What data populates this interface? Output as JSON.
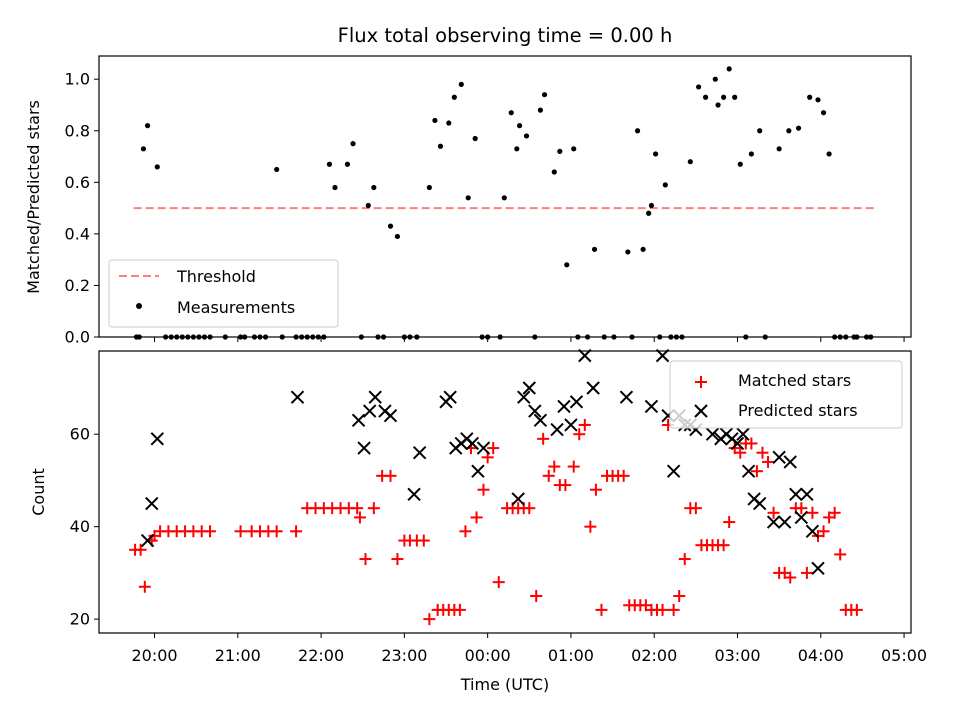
{
  "chart_data": [
    {
      "type": "scatter",
      "title": "Flux total observing time = 0.00 h",
      "xlabel": "",
      "ylabel": "Matched/Predicted stars",
      "ylim": [
        0,
        1.09
      ],
      "xlim": [
        "19:20",
        "05:05"
      ],
      "yticks": [
        "0.0",
        "0.2",
        "0.4",
        "0.6",
        "0.8",
        "1.0"
      ],
      "grid": false,
      "legend_position": "lower-left",
      "legend": [
        "Threshold",
        "Measurements"
      ],
      "threshold": {
        "name": "Threshold",
        "y": 0.5,
        "x_start": "19:45",
        "x_end": "04:40",
        "color": "#ff7f7f",
        "style": "dashed"
      },
      "series": [
        {
          "name": "Measurements",
          "marker": "dot",
          "color": "#000000",
          "x": [
            "19:47",
            "19:49",
            "19:52",
            "19:55",
            "20:02",
            "20:08",
            "20:12",
            "20:16",
            "20:20",
            "20:24",
            "20:28",
            "20:32",
            "20:36",
            "20:40",
            "20:51",
            "21:02",
            "21:05",
            "21:12",
            "21:16",
            "21:20",
            "21:28",
            "21:32",
            "21:42",
            "21:46",
            "21:50",
            "21:54",
            "21:58",
            "22:02",
            "22:06",
            "22:10",
            "22:19",
            "22:23",
            "22:29",
            "22:34",
            "22:38",
            "22:41",
            "22:45",
            "22:50",
            "22:55",
            "23:00",
            "23:04",
            "23:09",
            "23:18",
            "23:22",
            "23:26",
            "23:32",
            "23:36",
            "23:41",
            "23:46",
            "23:51",
            "23:56",
            "24:00",
            "24:09",
            "24:12",
            "24:17",
            "24:21",
            "24:23",
            "24:28",
            "24:34",
            "24:38",
            "24:41",
            "24:48",
            "24:52",
            "24:57",
            "25:02",
            "25:05",
            "25:12",
            "25:17",
            "25:24",
            "25:31",
            "25:41",
            "25:44",
            "25:48",
            "25:52",
            "25:56",
            "25:58",
            "26:01",
            "26:04",
            "26:08",
            "26:12",
            "26:16",
            "26:20",
            "26:26",
            "26:32",
            "26:37",
            "26:44",
            "26:46",
            "26:50",
            "26:54",
            "26:58",
            "27:02",
            "27:06",
            "27:10",
            "27:16",
            "27:20",
            "27:30",
            "27:37",
            "27:44",
            "27:52",
            "27:58",
            "28:02",
            "28:06",
            "28:10",
            "28:14",
            "28:18",
            "28:24",
            "28:26",
            "28:33",
            "28:36"
          ],
          "y": [
            0.0,
            0.0,
            0.73,
            0.82,
            0.66,
            0.0,
            0.0,
            0.0,
            0.0,
            0.0,
            0.0,
            0.0,
            0.0,
            0.0,
            0.0,
            0.0,
            0.0,
            0.0,
            0.0,
            0.0,
            0.65,
            0.0,
            0.0,
            0.0,
            0.0,
            0.0,
            0.0,
            0.0,
            0.67,
            0.58,
            0.67,
            0.75,
            0.0,
            0.51,
            0.58,
            0.0,
            0.0,
            0.43,
            0.39,
            0.0,
            0.0,
            0.0,
            0.58,
            0.84,
            0.74,
            0.83,
            0.93,
            0.98,
            0.54,
            0.77,
            0.0,
            0.0,
            0.0,
            0.54,
            0.87,
            0.73,
            0.82,
            0.78,
            0.0,
            0.88,
            0.94,
            0.64,
            0.72,
            0.28,
            0.73,
            0.0,
            0.0,
            0.34,
            0.0,
            0.0,
            0.33,
            0.0,
            0.8,
            0.34,
            0.48,
            0.51,
            0.71,
            0.0,
            0.59,
            0.0,
            0.0,
            0.0,
            0.68,
            0.97,
            0.93,
            1.0,
            0.9,
            0.93,
            1.04,
            0.93,
            0.67,
            0.0,
            0.71,
            0.8,
            0.0,
            0.73,
            0.8,
            0.81,
            0.93,
            0.92,
            0.87,
            0.71,
            0.0,
            0.0,
            0.0,
            0.0,
            0.0,
            0.0,
            0.0
          ]
        }
      ]
    },
    {
      "type": "scatter",
      "title": "",
      "xlabel": "Time (UTC)",
      "ylabel": "Count",
      "ylim": [
        17,
        78
      ],
      "xlim": [
        "19:20",
        "05:05"
      ],
      "yticks": [
        "20",
        "40",
        "60"
      ],
      "xticks": [
        "20:00",
        "21:00",
        "22:00",
        "23:00",
        "00:00",
        "01:00",
        "02:00",
        "03:00",
        "04:00",
        "05:00"
      ],
      "grid": false,
      "legend_position": "upper-right",
      "legend": [
        "Matched stars",
        "Predicted stars"
      ],
      "series": [
        {
          "name": "Matched stars",
          "marker": "plus",
          "color": "#ff0000",
          "points": [
            [
              "19:46",
              35
            ],
            [
              "19:50",
              35
            ],
            [
              "19:53",
              27
            ],
            [
              "19:58",
              37
            ],
            [
              "20:00",
              38
            ],
            [
              "20:04",
              39
            ],
            [
              "20:10",
              39
            ],
            [
              "20:16",
              39
            ],
            [
              "20:22",
              39
            ],
            [
              "20:28",
              39
            ],
            [
              "20:34",
              39
            ],
            [
              "20:40",
              39
            ],
            [
              "21:02",
              39
            ],
            [
              "21:10",
              39
            ],
            [
              "21:16",
              39
            ],
            [
              "21:22",
              39
            ],
            [
              "21:28",
              39
            ],
            [
              "21:42",
              39
            ],
            [
              "21:50",
              44
            ],
            [
              "21:56",
              44
            ],
            [
              "22:02",
              44
            ],
            [
              "22:08",
              44
            ],
            [
              "22:14",
              44
            ],
            [
              "22:20",
              44
            ],
            [
              "22:26",
              44
            ],
            [
              "22:28",
              42
            ],
            [
              "22:32",
              33
            ],
            [
              "22:38",
              44
            ],
            [
              "22:44",
              51
            ],
            [
              "22:50",
              51
            ],
            [
              "22:55",
              33
            ],
            [
              "23:00",
              37
            ],
            [
              "23:04",
              37
            ],
            [
              "23:09",
              37
            ],
            [
              "23:14",
              37
            ],
            [
              "23:18",
              20
            ],
            [
              "23:24",
              22
            ],
            [
              "23:28",
              22
            ],
            [
              "23:32",
              22
            ],
            [
              "23:36",
              22
            ],
            [
              "23:40",
              22
            ],
            [
              "23:44",
              39
            ],
            [
              "23:48",
              57
            ],
            [
              "23:52",
              42
            ],
            [
              "23:57",
              48
            ],
            [
              "24:00",
              55
            ],
            [
              "24:04",
              57
            ],
            [
              "24:08",
              28
            ],
            [
              "24:14",
              44
            ],
            [
              "24:18",
              44
            ],
            [
              "24:22",
              44
            ],
            [
              "24:26",
              44
            ],
            [
              "24:30",
              44
            ],
            [
              "24:35",
              25
            ],
            [
              "24:40",
              59
            ],
            [
              "24:44",
              51
            ],
            [
              "24:48",
              53
            ],
            [
              "24:52",
              49
            ],
            [
              "24:56",
              49
            ],
            [
              "25:02",
              53
            ],
            [
              "25:06",
              60
            ],
            [
              "25:10",
              62
            ],
            [
              "25:14",
              40
            ],
            [
              "25:18",
              48
            ],
            [
              "25:22",
              22
            ],
            [
              "25:26",
              51
            ],
            [
              "25:30",
              51
            ],
            [
              "25:34",
              51
            ],
            [
              "25:38",
              51
            ],
            [
              "25:42",
              23
            ],
            [
              "25:46",
              23
            ],
            [
              "25:50",
              23
            ],
            [
              "25:54",
              23
            ],
            [
              "25:58",
              22
            ],
            [
              "26:02",
              22
            ],
            [
              "26:06",
              22
            ],
            [
              "26:10",
              62
            ],
            [
              "26:14",
              22
            ],
            [
              "26:18",
              25
            ],
            [
              "26:22",
              33
            ],
            [
              "26:26",
              44
            ],
            [
              "26:30",
              44
            ],
            [
              "26:34",
              36
            ],
            [
              "26:38",
              36
            ],
            [
              "26:42",
              36
            ],
            [
              "26:46",
              36
            ],
            [
              "26:50",
              36
            ],
            [
              "26:54",
              41
            ],
            [
              "26:58",
              57
            ],
            [
              "27:02",
              56
            ],
            [
              "27:06",
              58
            ],
            [
              "27:10",
              58
            ],
            [
              "27:14",
              52
            ],
            [
              "27:18",
              56
            ],
            [
              "27:22",
              54
            ],
            [
              "27:26",
              43
            ],
            [
              "27:30",
              30
            ],
            [
              "27:34",
              30
            ],
            [
              "27:38",
              29
            ],
            [
              "27:42",
              44
            ],
            [
              "27:46",
              44
            ],
            [
              "27:50",
              30
            ],
            [
              "27:54",
              43
            ],
            [
              "27:58",
              38
            ],
            [
              "28:02",
              39
            ],
            [
              "28:06",
              42
            ],
            [
              "28:10",
              43
            ],
            [
              "28:14",
              34
            ],
            [
              "28:18",
              22
            ],
            [
              "28:22",
              22
            ],
            [
              "28:26",
              22
            ]
          ]
        },
        {
          "name": "Predicted stars",
          "marker": "x",
          "color": "#000000",
          "points": [
            [
              "19:55",
              37
            ],
            [
              "19:58",
              45
            ],
            [
              "20:02",
              59
            ],
            [
              "21:43",
              68
            ],
            [
              "22:27",
              63
            ],
            [
              "22:31",
              57
            ],
            [
              "22:35",
              65
            ],
            [
              "22:39",
              68
            ],
            [
              "22:46",
              65
            ],
            [
              "22:50",
              64
            ],
            [
              "23:07",
              47
            ],
            [
              "23:11",
              56
            ],
            [
              "23:30",
              67
            ],
            [
              "23:33",
              68
            ],
            [
              "23:37",
              57
            ],
            [
              "23:41",
              58
            ],
            [
              "23:45",
              59
            ],
            [
              "23:49",
              58
            ],
            [
              "23:53",
              52
            ],
            [
              "23:57",
              57
            ],
            [
              "24:22",
              46
            ],
            [
              "24:26",
              68
            ],
            [
              "24:30",
              70
            ],
            [
              "24:34",
              65
            ],
            [
              "24:38",
              63
            ],
            [
              "24:50",
              61
            ],
            [
              "24:55",
              66
            ],
            [
              "25:00",
              62
            ],
            [
              "25:04",
              67
            ],
            [
              "25:10",
              77
            ],
            [
              "25:16",
              70
            ],
            [
              "25:40",
              68
            ],
            [
              "25:58",
              66
            ],
            [
              "26:06",
              77
            ],
            [
              "26:10",
              64
            ],
            [
              "26:14",
              52
            ],
            [
              "26:18",
              64
            ],
            [
              "26:22",
              62
            ],
            [
              "26:26",
              62
            ],
            [
              "26:30",
              61
            ],
            [
              "26:42",
              60
            ],
            [
              "26:48",
              59
            ],
            [
              "26:52",
              60
            ],
            [
              "26:56",
              59
            ],
            [
              "27:00",
              58
            ],
            [
              "27:04",
              60
            ],
            [
              "27:08",
              52
            ],
            [
              "27:12",
              46
            ],
            [
              "27:16",
              45
            ],
            [
              "27:26",
              41
            ],
            [
              "27:30",
              55
            ],
            [
              "27:34",
              41
            ],
            [
              "27:38",
              54
            ],
            [
              "27:42",
              47
            ],
            [
              "27:46",
              42
            ],
            [
              "27:50",
              47
            ],
            [
              "27:54",
              39
            ],
            [
              "27:58",
              31
            ]
          ]
        }
      ]
    }
  ]
}
